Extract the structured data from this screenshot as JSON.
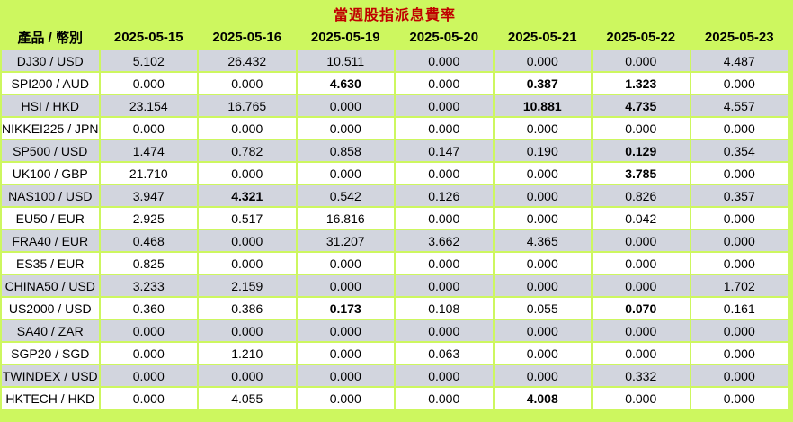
{
  "title": "當週股指派息費率",
  "table": {
    "product_header": "產品 / 幣別",
    "date_headers": [
      "2025-05-15",
      "2025-05-16",
      "2025-05-19",
      "2025-05-20",
      "2025-05-21",
      "2025-05-22",
      "2025-05-23"
    ],
    "rows": [
      {
        "product": "DJ30 / USD",
        "values": [
          "5.102",
          "26.432",
          "10.511",
          "0.000",
          "0.000",
          "0.000",
          "4.487"
        ],
        "bold": []
      },
      {
        "product": "SPI200 / AUD",
        "values": [
          "0.000",
          "0.000",
          "4.630",
          "0.000",
          "0.387",
          "1.323",
          "0.000"
        ],
        "bold": [
          2,
          4,
          5
        ]
      },
      {
        "product": "HSI / HKD",
        "values": [
          "23.154",
          "16.765",
          "0.000",
          "0.000",
          "10.881",
          "4.735",
          "4.557"
        ],
        "bold": [
          4,
          5
        ]
      },
      {
        "product": "NIKKEI225 / JPN",
        "values": [
          "0.000",
          "0.000",
          "0.000",
          "0.000",
          "0.000",
          "0.000",
          "0.000"
        ],
        "bold": []
      },
      {
        "product": "SP500 / USD",
        "values": [
          "1.474",
          "0.782",
          "0.858",
          "0.147",
          "0.190",
          "0.129",
          "0.354"
        ],
        "bold": [
          5
        ]
      },
      {
        "product": "UK100 / GBP",
        "values": [
          "21.710",
          "0.000",
          "0.000",
          "0.000",
          "0.000",
          "3.785",
          "0.000"
        ],
        "bold": [
          5
        ]
      },
      {
        "product": "NAS100 / USD",
        "values": [
          "3.947",
          "4.321",
          "0.542",
          "0.126",
          "0.000",
          "0.826",
          "0.357"
        ],
        "bold": [
          1
        ]
      },
      {
        "product": "EU50 / EUR",
        "values": [
          "2.925",
          "0.517",
          "16.816",
          "0.000",
          "0.000",
          "0.042",
          "0.000"
        ],
        "bold": []
      },
      {
        "product": "FRA40 / EUR",
        "values": [
          "0.468",
          "0.000",
          "31.207",
          "3.662",
          "4.365",
          "0.000",
          "0.000"
        ],
        "bold": []
      },
      {
        "product": "ES35 / EUR",
        "values": [
          "0.825",
          "0.000",
          "0.000",
          "0.000",
          "0.000",
          "0.000",
          "0.000"
        ],
        "bold": []
      },
      {
        "product": "CHINA50 / USD",
        "values": [
          "3.233",
          "2.159",
          "0.000",
          "0.000",
          "0.000",
          "0.000",
          "1.702"
        ],
        "bold": []
      },
      {
        "product": "US2000 / USD",
        "values": [
          "0.360",
          "0.386",
          "0.173",
          "0.108",
          "0.055",
          "0.070",
          "0.161"
        ],
        "bold": [
          2,
          5
        ]
      },
      {
        "product": "SA40 / ZAR",
        "values": [
          "0.000",
          "0.000",
          "0.000",
          "0.000",
          "0.000",
          "0.000",
          "0.000"
        ],
        "bold": []
      },
      {
        "product": "SGP20 / SGD",
        "values": [
          "0.000",
          "1.210",
          "0.000",
          "0.063",
          "0.000",
          "0.000",
          "0.000"
        ],
        "bold": []
      },
      {
        "product": "TWINDEX / USD",
        "values": [
          "0.000",
          "0.000",
          "0.000",
          "0.000",
          "0.000",
          "0.332",
          "0.000"
        ],
        "bold": []
      },
      {
        "product": "HKTECH / HKD",
        "values": [
          "0.000",
          "4.055",
          "0.000",
          "0.000",
          "4.008",
          "0.000",
          "0.000"
        ],
        "bold": [
          4
        ]
      }
    ]
  },
  "colors": {
    "header_green": "#CDF75F",
    "title_red": "#C00000",
    "row_gray": "#D2D5DE",
    "row_white": "#FFFFFF",
    "text_black": "#000000"
  }
}
